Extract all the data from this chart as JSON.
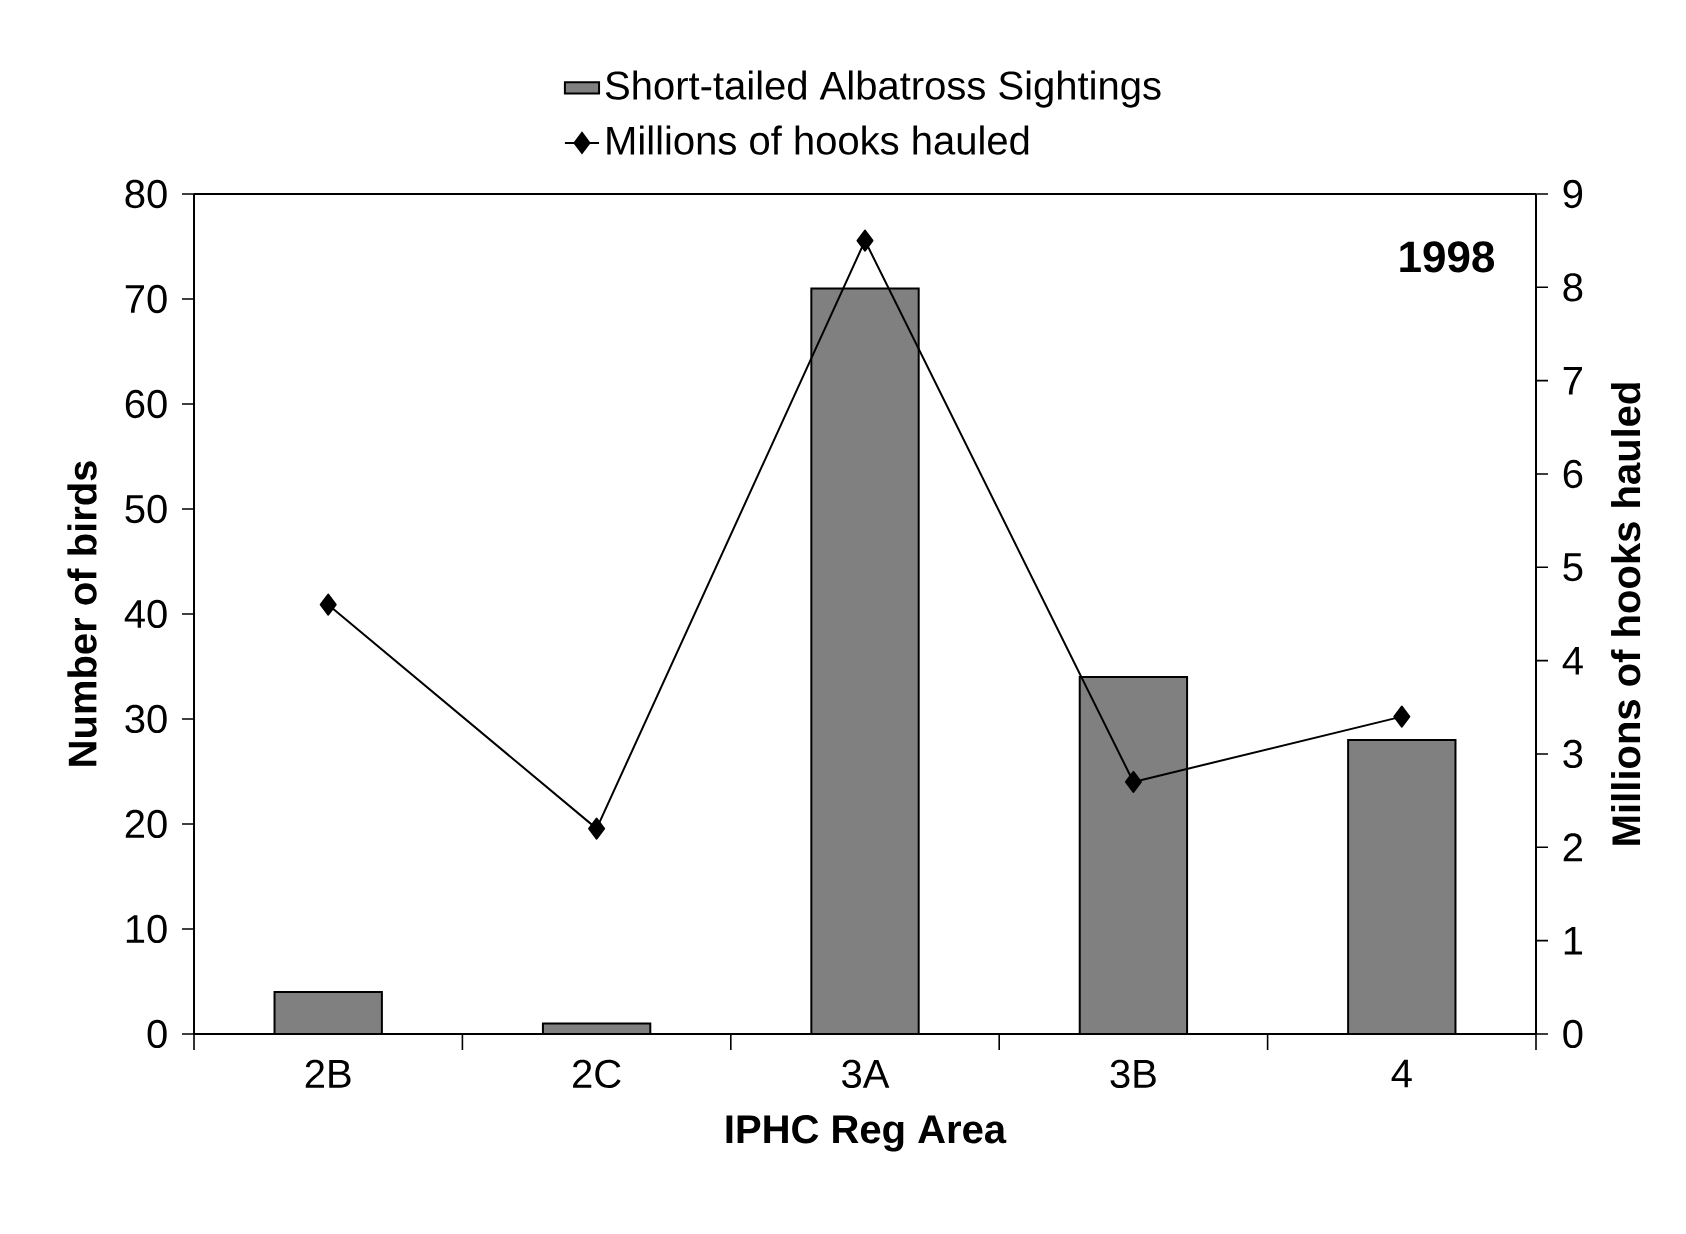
{
  "chart_data": {
    "type": "bar",
    "categories": [
      "2B",
      "2C",
      "3A",
      "3B",
      "4"
    ],
    "xlabel": "IPHC Reg Area",
    "ylabel": "Number of birds",
    "y2label": "Millions of hooks hauled",
    "ylim": [
      0,
      80
    ],
    "yticks": [
      0,
      10,
      20,
      30,
      40,
      50,
      60,
      70,
      80
    ],
    "y2lim": [
      0,
      9
    ],
    "y2ticks": [
      0,
      1,
      2,
      3,
      4,
      5,
      6,
      7,
      8,
      9
    ],
    "legend": "top",
    "annotations": [
      "1998"
    ],
    "series": [
      {
        "name": "Short-tailed Albatross Sightings",
        "color": "#808080",
        "values": [
          4,
          1,
          71,
          34,
          28
        ]
      },
      {
        "name": "Millions of hooks hauled",
        "type": "line",
        "axis": "y2",
        "color": "#000000",
        "marker": "diamond",
        "values": [
          4.6,
          2.2,
          8.5,
          2.7,
          3.4
        ]
      }
    ]
  }
}
